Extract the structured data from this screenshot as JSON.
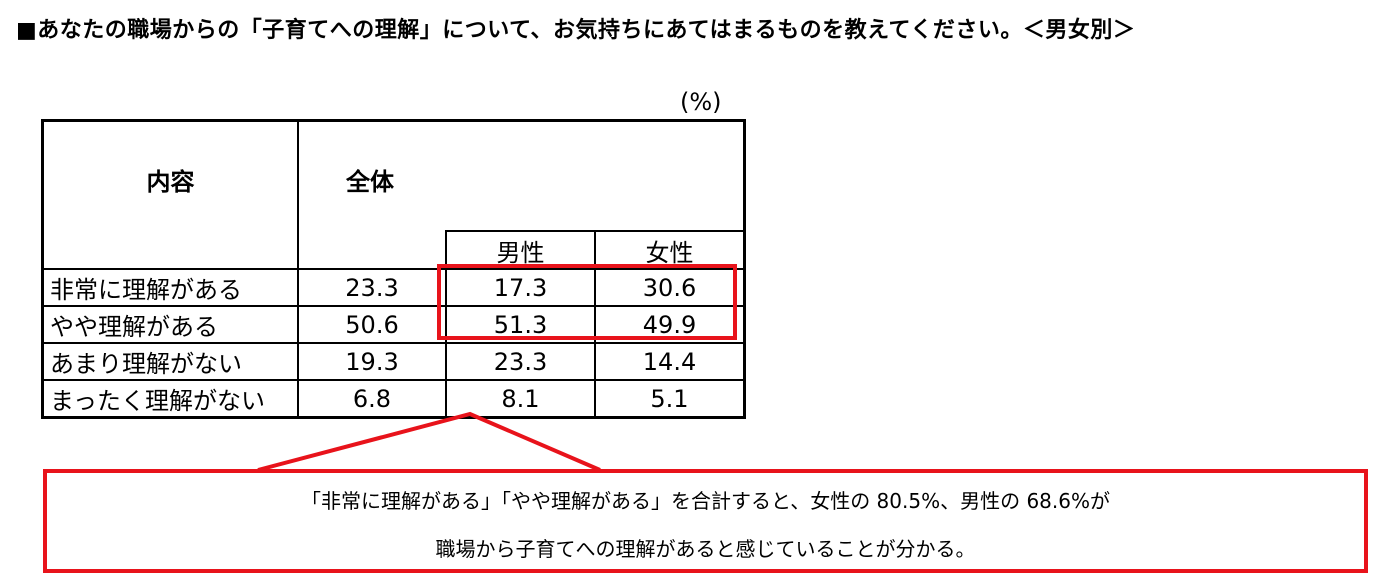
{
  "title": "■あなたの職場からの「子育てへの理解」について、お気持ちにあてはまるものを教えてください。＜男女別＞",
  "unit": "(%)",
  "table": {
    "header_content": "内容",
    "header_total": "全体",
    "header_male": "男性",
    "header_female": "女性"
  },
  "chart_data": {
    "type": "table",
    "columns": [
      "内容",
      "全体",
      "男性",
      "女性"
    ],
    "rows": [
      {
        "label": "非常に理解がある",
        "total": "23.3",
        "male": "17.3",
        "female": "30.6"
      },
      {
        "label": "やや理解がある",
        "total": "50.6",
        "male": "51.3",
        "female": "49.9"
      },
      {
        "label": "あまり理解がない",
        "total": "19.3",
        "male": "23.3",
        "female": "14.4"
      },
      {
        "label": "まったく理解がない",
        "total": "6.8",
        "male": "8.1",
        "female": "5.1"
      }
    ]
  },
  "highlight_color": "#e8131b",
  "note": {
    "line1": "「非常に理解がある」「やや理解がある」を合計すると、女性の 80.5%、男性の 68.6%が",
    "line2": "職場から子育てへの理解があると感じていることが分かる。"
  }
}
